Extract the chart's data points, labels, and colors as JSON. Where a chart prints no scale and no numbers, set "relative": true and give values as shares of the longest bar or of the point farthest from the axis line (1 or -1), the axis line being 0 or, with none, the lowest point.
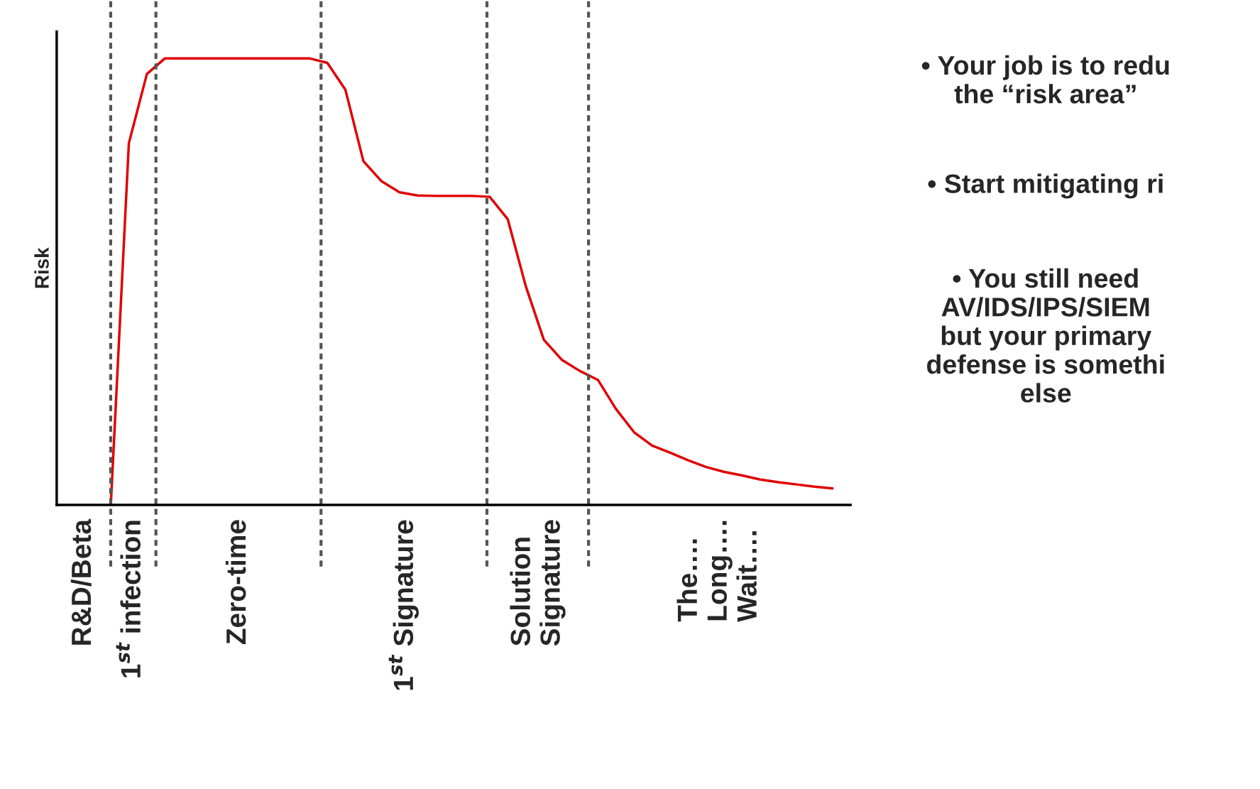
{
  "chart_data": {
    "type": "line",
    "relative": true,
    "ylabel": "Risk",
    "categories": [
      null,
      null,
      null,
      null,
      null,
      null,
      null,
      null,
      null,
      null,
      null,
      null,
      null,
      null,
      null,
      null,
      null,
      null,
      null,
      null,
      null,
      null,
      null,
      null,
      null,
      null,
      null,
      null,
      null,
      null,
      null,
      null,
      null,
      null,
      null,
      null,
      null,
      null,
      null,
      null,
      null,
      null,
      null,
      null,
      null
    ],
    "grid": false,
    "marker": "none",
    "line_style": "solid",
    "series": [
      {
        "color": "#e00000",
        "values": [
          null,
          null,
          null,
          0,
          0.81,
          0.965,
          1,
          1,
          1,
          1,
          1,
          1,
          1,
          1,
          1,
          0.99,
          0.93,
          0.77,
          0.725,
          0.7,
          0.693,
          0.692,
          0.692,
          0.692,
          0.69,
          0.64,
          0.49,
          0.37,
          0.325,
          0.3,
          0.28,
          0.215,
          0.163,
          0.133,
          0.117,
          0.1,
          0.085,
          0.074,
          0.066,
          0.057,
          0.051,
          0.046,
          0.041,
          0.037,
          null
        ]
      }
    ],
    "annotations": [
      "R&D/Beta",
      "1$^{st}$ infection",
      "Zero-time",
      "1$^{st}$ Signature",
      "Solution\nSignature",
      "The….\nLong….\nWait….",
      "• Your job is to redu\nthe “risk area”",
      "• Start mitigating ri",
      "• You still need\nAV/IDS/IPS/SIEM\nbut your primary\ndefense is somethi\nelse"
    ]
  }
}
